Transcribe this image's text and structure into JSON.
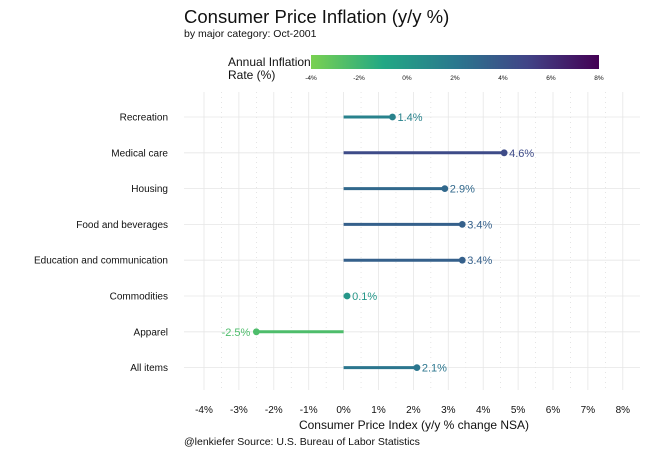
{
  "chart_data": {
    "type": "lollipop",
    "title": "Consumer Price Inflation (y/y %)",
    "subtitle": "by major category: Oct-2001",
    "xlabel": "Consumer Price Index (y/y % change NSA)",
    "ylabel": "",
    "caption": "@lenkiefer Source: U.S. Bureau of Labor Statistics",
    "xlim": [
      -4.4,
      8.4
    ],
    "x_ticks": [
      -4,
      -3,
      -2,
      -1,
      0,
      1,
      2,
      3,
      4,
      5,
      6,
      7,
      8
    ],
    "x_tick_labels": [
      "-4%",
      "-3%",
      "-2%",
      "-1%",
      "0%",
      "1%",
      "2%",
      "3%",
      "4%",
      "5%",
      "6%",
      "7%",
      "8%"
    ],
    "grid": true,
    "categories": [
      "Recreation",
      "Medical care",
      "Housing",
      "Food and beverages",
      "Education and communication",
      "Commodities",
      "Apparel",
      "All items"
    ],
    "values": [
      1.4,
      4.6,
      2.9,
      3.4,
      3.4,
      0.1,
      -2.5,
      2.1
    ],
    "value_labels": [
      "1.4%",
      "4.6%",
      "2.9%",
      "3.4%",
      "3.4%",
      "0.1%",
      "-2.5%",
      "2.1%"
    ],
    "legend": {
      "title_line1": "Annual Inflation",
      "title_line2": "Rate (%)",
      "placement": "top",
      "range": [
        -4,
        8
      ],
      "ticks": [
        -4,
        -2,
        0,
        2,
        4,
        6,
        8
      ],
      "tick_labels": [
        "-4%",
        "-2%",
        "0%",
        "2%",
        "4%",
        "6%",
        "8%"
      ]
    },
    "color_scale": {
      "name": "viridis-reversed",
      "stops": [
        "#7ad151",
        "#22a884",
        "#2a788e",
        "#414487",
        "#440154"
      ]
    }
  }
}
